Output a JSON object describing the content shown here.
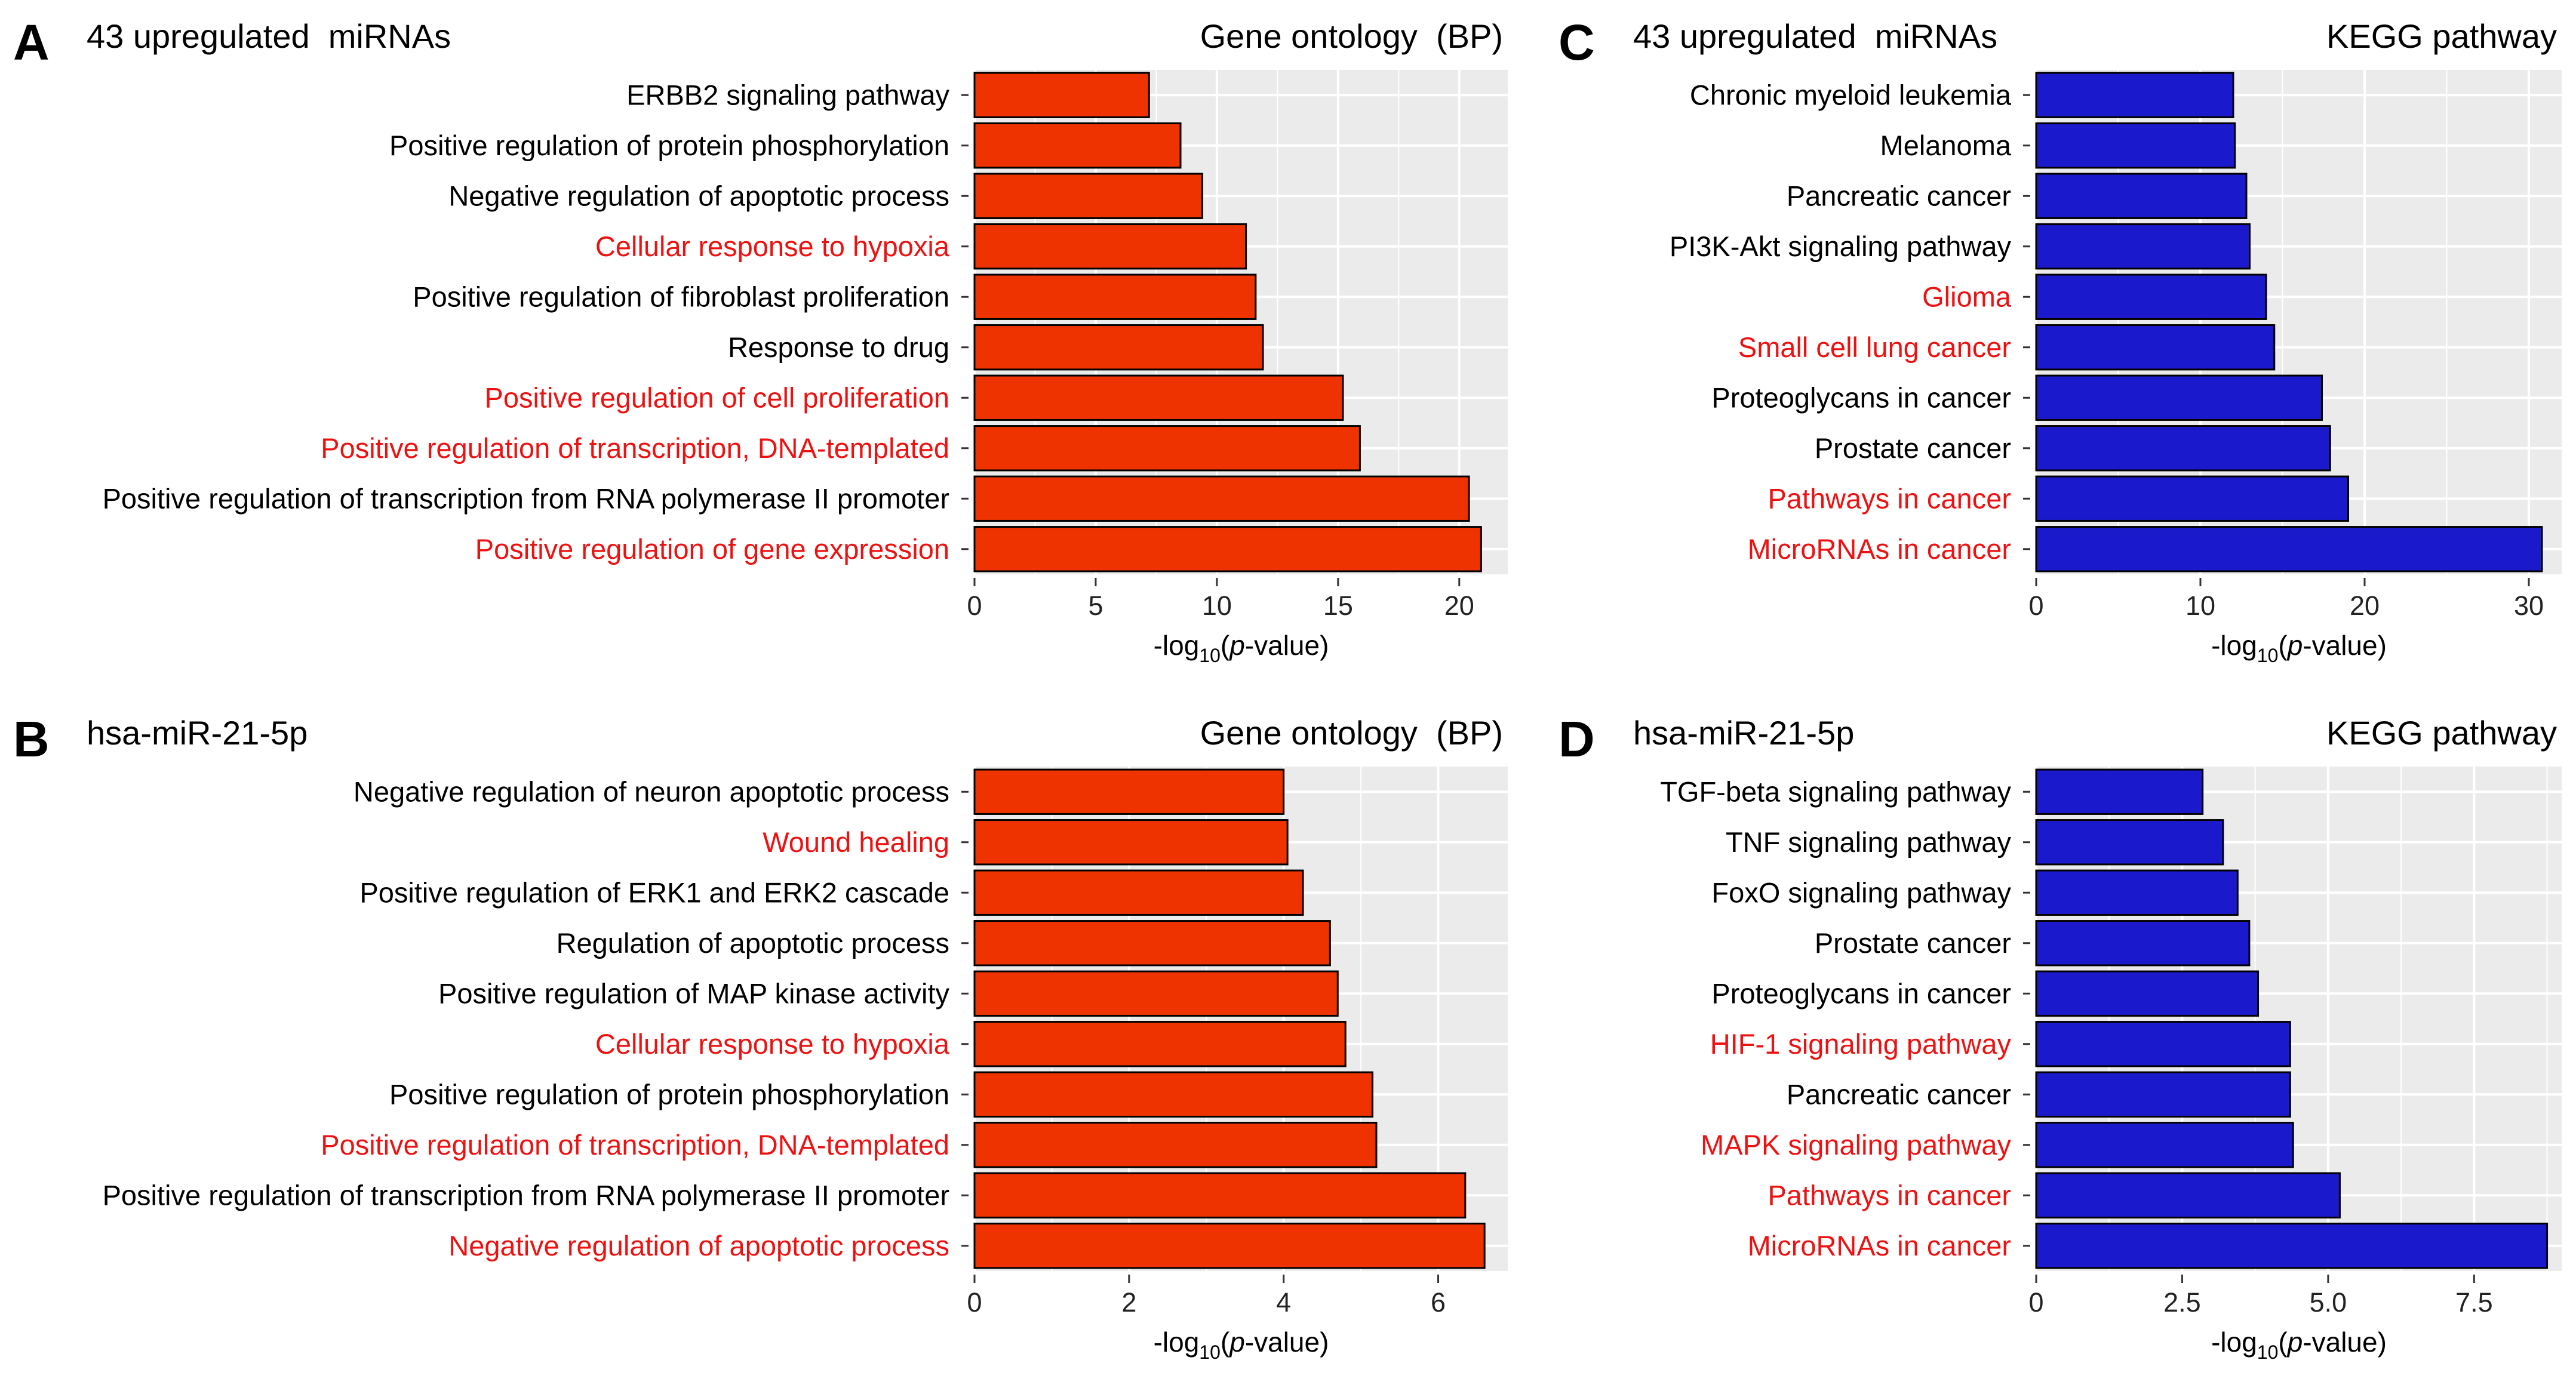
{
  "figure": {
    "colors": {
      "panel_bg": "#ebebeb",
      "grid": "#ffffff",
      "go_bar": "#ee3300",
      "kegg_bar": "#1a1acc",
      "highlight_text": "#ee1111",
      "normal_text": "#000000"
    },
    "xlabel_parts": {
      "pre": "-log",
      "sub": "10",
      "open": "(",
      "italic": "p",
      "post": "-value)"
    }
  },
  "chart_data": [
    {
      "type": "bar",
      "orientation": "horizontal",
      "panel": "A",
      "subtitle": "43 upregulated  miRNAs",
      "title": "Gene ontology  (BP)",
      "xlabel": "-log10(p-value)",
      "xlim": [
        0,
        22
      ],
      "xticks": [
        0,
        5,
        10,
        15,
        20
      ],
      "xtick_labels": [
        "0",
        "5",
        "10",
        "15",
        "20"
      ],
      "bar_color": "#ee3300",
      "categories": [
        "ERBB2 signaling pathway",
        "Positive regulation of protein phosphorylation",
        "Negative regulation of apoptotic process",
        "Cellular response to hypoxia",
        "Positive regulation of fibroblast proliferation",
        "Response to drug",
        "Positive regulation of cell proliferation",
        "Positive regulation of transcription, DNA-templated",
        "Positive regulation of transcription from RNA polymerase II promoter",
        "Positive regulation of gene expression"
      ],
      "values": [
        7.2,
        8.5,
        9.4,
        11.2,
        11.6,
        11.9,
        15.2,
        15.9,
        20.4,
        20.9
      ],
      "highlighted": [
        false,
        false,
        false,
        true,
        false,
        false,
        true,
        true,
        false,
        true
      ]
    },
    {
      "type": "bar",
      "orientation": "horizontal",
      "panel": "C",
      "subtitle": "43 upregulated  miRNAs",
      "title": "KEGG pathway",
      "xlabel": "-log10(p-value)",
      "xlim": [
        0,
        32
      ],
      "xticks": [
        0,
        10,
        20,
        30
      ],
      "xtick_labels": [
        "0",
        "10",
        "20",
        "30"
      ],
      "bar_color": "#1a1acc",
      "categories": [
        "Chronic myeloid leukemia",
        "Melanoma",
        "Pancreatic cancer",
        "PI3K-Akt signaling pathway",
        "Glioma",
        "Small cell lung cancer",
        "Proteoglycans in cancer",
        "Prostate cancer",
        "Pathways in cancer",
        "MicroRNAs in cancer"
      ],
      "values": [
        12.0,
        12.1,
        12.8,
        13.0,
        14.0,
        14.5,
        17.4,
        17.9,
        19.0,
        30.8
      ],
      "highlighted": [
        false,
        false,
        false,
        false,
        true,
        true,
        false,
        false,
        true,
        true
      ]
    },
    {
      "type": "bar",
      "orientation": "horizontal",
      "panel": "B",
      "subtitle": "hsa-miR-21-5p",
      "title": "Gene ontology  (BP)",
      "xlabel": "-log10(p-value)",
      "xlim": [
        0,
        6.9
      ],
      "xticks": [
        0,
        2,
        4,
        6
      ],
      "xtick_labels": [
        "0",
        "2",
        "4",
        "6"
      ],
      "bar_color": "#ee3300",
      "categories": [
        "Negative regulation of neuron apoptotic process",
        "Wound healing",
        "Positive regulation of ERK1 and ERK2 cascade",
        "Regulation of apoptotic process",
        "Positive regulation of MAP kinase activity",
        "Cellular response to hypoxia",
        "Positive regulation of protein phosphorylation",
        "Positive regulation of transcription, DNA-templated",
        "Positive regulation of transcription from RNA polymerase II promoter",
        "Negative regulation of apoptotic process"
      ],
      "values": [
        4.0,
        4.05,
        4.25,
        4.6,
        4.7,
        4.8,
        5.15,
        5.2,
        6.35,
        6.6
      ],
      "highlighted": [
        false,
        true,
        false,
        false,
        false,
        true,
        false,
        true,
        false,
        true
      ]
    },
    {
      "type": "bar",
      "orientation": "horizontal",
      "panel": "D",
      "subtitle": "hsa-miR-21-5p",
      "title": "KEGG pathway",
      "xlabel": "-log10(p-value)",
      "xlim": [
        0,
        9.0
      ],
      "xticks": [
        0,
        2.5,
        5.0,
        7.5
      ],
      "xtick_labels": [
        "0",
        "2.5",
        "5.0",
        "7.5"
      ],
      "bar_color": "#1a1acc",
      "categories": [
        "TGF-beta signaling pathway",
        "TNF signaling pathway",
        "FoxO signaling pathway",
        "Prostate cancer",
        "Proteoglycans in cancer",
        "HIF-1 signaling pathway",
        "Pancreatic cancer",
        "MAPK signaling pathway",
        "Pathways in cancer",
        "MicroRNAs in cancer"
      ],
      "values": [
        2.85,
        3.2,
        3.45,
        3.65,
        3.8,
        4.35,
        4.35,
        4.4,
        5.2,
        8.75
      ],
      "highlighted": [
        false,
        false,
        false,
        false,
        false,
        true,
        false,
        true,
        true,
        true
      ]
    }
  ]
}
